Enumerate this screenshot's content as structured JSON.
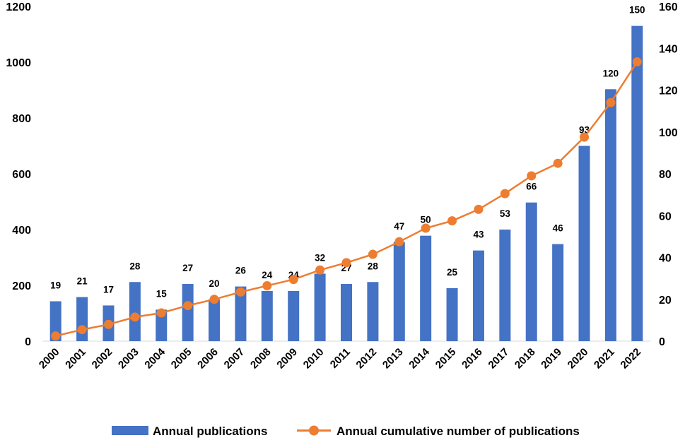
{
  "chart_data": {
    "type": "bar+line",
    "categories": [
      "2000",
      "2001",
      "2002",
      "2003",
      "2004",
      "2005",
      "2006",
      "2007",
      "2008",
      "2009",
      "2010",
      "2011",
      "2012",
      "2013",
      "2014",
      "2015",
      "2016",
      "2017",
      "2018",
      "2019",
      "2020",
      "2021",
      "2022"
    ],
    "series": [
      {
        "name": "Annual publications",
        "type": "bar",
        "axis": "left",
        "color": "#4472C4",
        "values": [
          143,
          158,
          128,
          212,
          113,
          205,
          150,
          196,
          180,
          180,
          242,
          205,
          212,
          355,
          378,
          190,
          325,
          400,
          497,
          348,
          700,
          903,
          1130
        ],
        "labels": [
          "19",
          "21",
          "17",
          "28",
          "15",
          "27",
          "20",
          "26",
          "24",
          "24",
          "32",
          "27",
          "28",
          "47",
          "50",
          "25",
          "43",
          "53",
          "66",
          "46",
          "93",
          "120",
          "150"
        ]
      },
      {
        "name": "Annual cumulative number of publications",
        "type": "line",
        "axis": "right",
        "color": "#ED7D31",
        "values": [
          2.5,
          5.5,
          8,
          11.5,
          13.5,
          17,
          20,
          23.5,
          26.5,
          29.5,
          34,
          37.5,
          41.5,
          47.5,
          54,
          57.5,
          63,
          70.5,
          79,
          85,
          97.5,
          114,
          133.5
        ]
      }
    ],
    "y_left": {
      "ylim": [
        0,
        1200
      ],
      "ticks": [
        "0",
        "200",
        "400",
        "600",
        "800",
        "1000",
        "1200"
      ]
    },
    "y_right": {
      "ylim": [
        0,
        160
      ],
      "ticks": [
        "0",
        "20",
        "40",
        "60",
        "80",
        "100",
        "120",
        "140",
        "160"
      ]
    },
    "legend": "bottom",
    "grid": false
  }
}
